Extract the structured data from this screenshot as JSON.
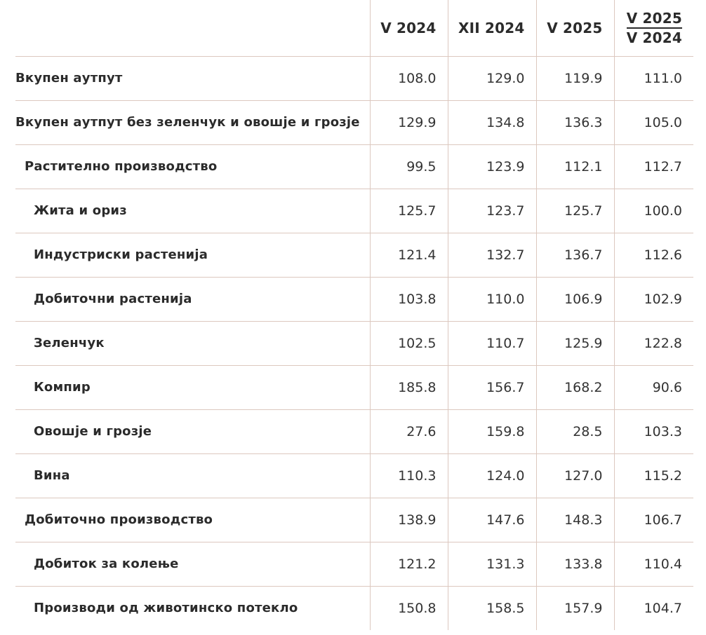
{
  "table": {
    "columns": [
      {
        "label": "V 2024"
      },
      {
        "label": "XII 2024"
      },
      {
        "label": "V 2025"
      },
      {
        "top": "V 2025",
        "bottom": "V 2024"
      }
    ],
    "rows": [
      {
        "label": "Вкупен аутпут",
        "level": 0,
        "values": [
          "108.0",
          "129.0",
          "119.9",
          "111.0"
        ]
      },
      {
        "label": "Вкупен аутпут без зеленчук и овошје и грозје",
        "level": 0,
        "values": [
          "129.9",
          "134.8",
          "136.3",
          "105.0"
        ]
      },
      {
        "label": "Растително производство",
        "level": 1,
        "values": [
          "99.5",
          "123.9",
          "112.1",
          "112.7"
        ]
      },
      {
        "label": "Жита и ориз",
        "level": 2,
        "values": [
          "125.7",
          "123.7",
          "125.7",
          "100.0"
        ]
      },
      {
        "label": "Индустриски растенија",
        "level": 2,
        "values": [
          "121.4",
          "132.7",
          "136.7",
          "112.6"
        ]
      },
      {
        "label": "Добиточни растенија",
        "level": 2,
        "values": [
          "103.8",
          "110.0",
          "106.9",
          "102.9"
        ]
      },
      {
        "label": "Зеленчук",
        "level": 2,
        "values": [
          "102.5",
          "110.7",
          "125.9",
          "122.8"
        ]
      },
      {
        "label": "Компир",
        "level": 2,
        "values": [
          "185.8",
          "156.7",
          "168.2",
          "90.6"
        ]
      },
      {
        "label": "Овошје и грозје",
        "level": 2,
        "values": [
          "27.6",
          "159.8",
          "28.5",
          "103.3"
        ]
      },
      {
        "label": "Вина",
        "level": 2,
        "values": [
          "110.3",
          "124.0",
          "127.0",
          "115.2"
        ]
      },
      {
        "label": "Добиточно производство",
        "level": 1,
        "values": [
          "138.9",
          "147.6",
          "148.3",
          "106.7"
        ]
      },
      {
        "label": "Добиток за колење",
        "level": 2,
        "values": [
          "121.2",
          "131.3",
          "133.8",
          "110.4"
        ]
      },
      {
        "label": "Производи од животинско потекло",
        "level": 2,
        "values": [
          "150.8",
          "158.5",
          "157.9",
          "104.7"
        ]
      }
    ]
  },
  "colors": {
    "border": "#dcc8bf",
    "text": "#2b2b2b"
  }
}
